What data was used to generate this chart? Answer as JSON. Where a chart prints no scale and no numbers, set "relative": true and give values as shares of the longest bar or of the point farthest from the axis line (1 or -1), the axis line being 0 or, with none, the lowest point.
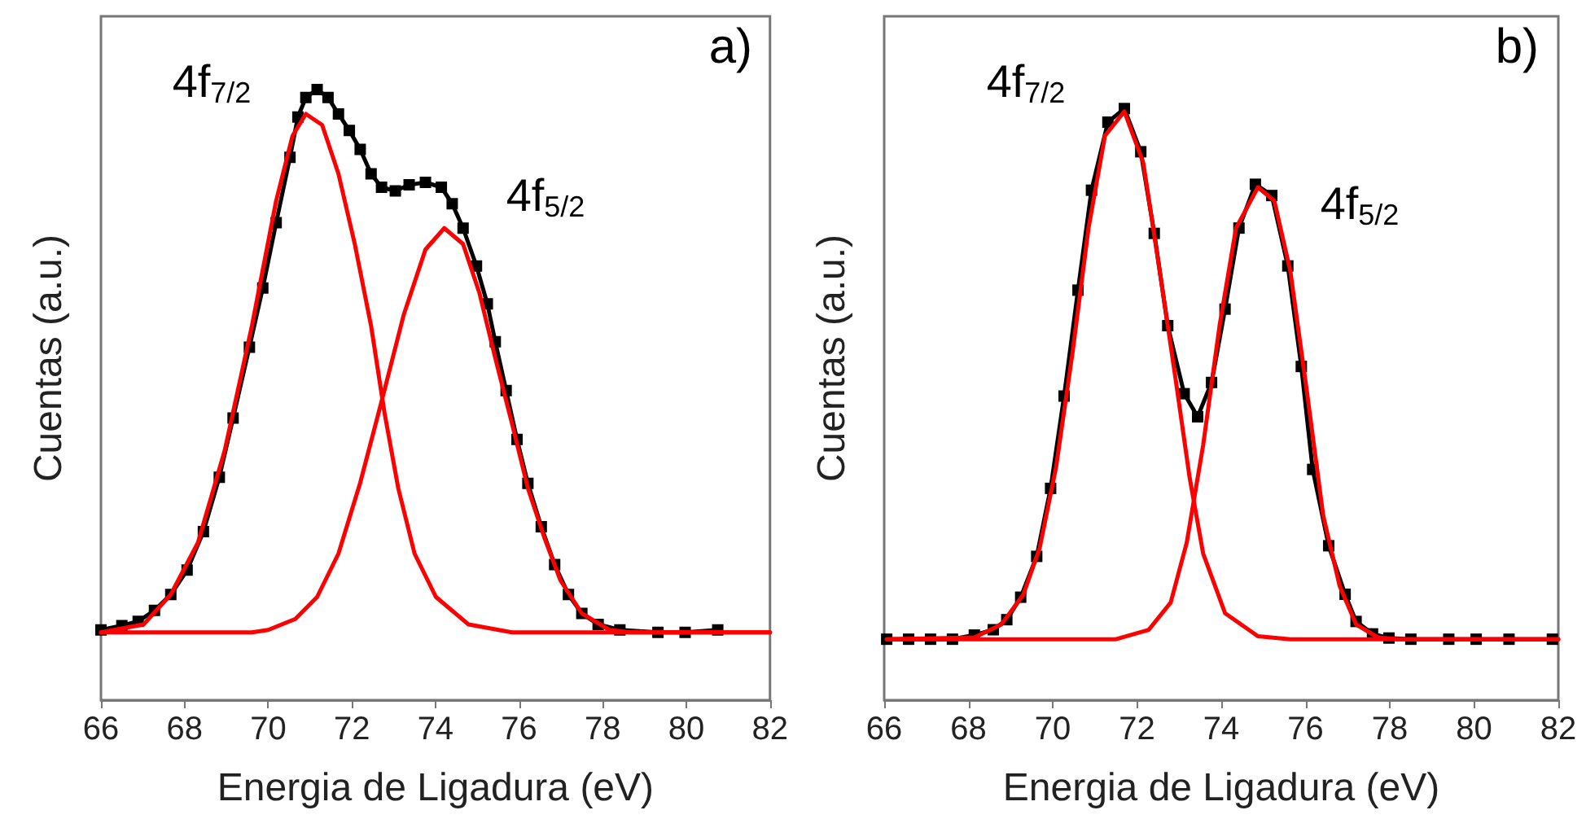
{
  "chart_data": [
    {
      "type": "line",
      "xlabel": "Energia de Ligadura (eV)",
      "ylabel": "Cuentas (a.u.)",
      "relative": true,
      "xlim": [
        66,
        82
      ],
      "xticks": [
        66,
        68,
        70,
        72,
        74,
        76,
        78,
        80,
        82
      ],
      "grid": false,
      "annotations": [
        "a)",
        "4f$_{7/2}$",
        "4f$_{5/2}$"
      ],
      "series": [
        {
          "color": "#000000",
          "marker": "square",
          "x": [
            66.0,
            66.5,
            66.89,
            67.28,
            67.67,
            68.06,
            68.45,
            68.83,
            69.16,
            69.55,
            69.87,
            70.19,
            70.52,
            70.71,
            70.9,
            71.17,
            71.43,
            71.68,
            71.94,
            72.2,
            72.46,
            72.71,
            73.04,
            73.37,
            73.76,
            74.14,
            74.4,
            74.66,
            74.98,
            75.24,
            75.43,
            75.69,
            75.95,
            76.21,
            76.53,
            76.85,
            77.18,
            77.5,
            77.89,
            78.41,
            79.32,
            79.97,
            80.75
          ],
          "values": [
            0.115,
            0.122,
            0.129,
            0.147,
            0.173,
            0.213,
            0.276,
            0.365,
            0.462,
            0.578,
            0.675,
            0.782,
            0.889,
            0.955,
            0.987,
            1.0,
            0.987,
            0.96,
            0.933,
            0.902,
            0.862,
            0.84,
            0.834,
            0.844,
            0.848,
            0.84,
            0.813,
            0.773,
            0.711,
            0.649,
            0.587,
            0.507,
            0.427,
            0.355,
            0.284,
            0.222,
            0.173,
            0.142,
            0.124,
            0.115,
            0.111,
            0.111,
            0.115
          ]
        },
        {
          "color": "#ff0000",
          "marker": "none",
          "x": [
            66.0,
            67.02,
            67.67,
            68.32,
            68.96,
            69.61,
            70.19,
            70.58,
            70.9,
            71.29,
            71.68,
            72.07,
            72.46,
            72.78,
            73.11,
            73.5,
            74.01,
            74.79,
            75.83,
            82
          ],
          "values": [
            0.111,
            0.124,
            0.173,
            0.258,
            0.409,
            0.613,
            0.818,
            0.924,
            0.96,
            0.942,
            0.862,
            0.747,
            0.613,
            0.471,
            0.347,
            0.24,
            0.169,
            0.124,
            0.111,
            0.111
          ]
        },
        {
          "color": "#ff0000",
          "marker": "none",
          "x": [
            66.0,
            69.61,
            70.0,
            70.65,
            71.17,
            71.68,
            72.2,
            72.71,
            73.24,
            73.76,
            74.21,
            74.66,
            75.05,
            75.43,
            75.83,
            76.21,
            76.6,
            76.99,
            77.5,
            78.16,
            78.67,
            82
          ],
          "values": [
            0.111,
            0.111,
            0.115,
            0.133,
            0.169,
            0.24,
            0.356,
            0.489,
            0.631,
            0.738,
            0.773,
            0.747,
            0.667,
            0.56,
            0.453,
            0.347,
            0.267,
            0.196,
            0.142,
            0.115,
            0.111,
            0.111
          ]
        }
      ]
    },
    {
      "type": "line",
      "xlabel": "Energia de Ligadura (eV)",
      "ylabel": "Cuentas (a.u.)",
      "relative": true,
      "xlim": [
        66,
        82
      ],
      "xticks": [
        66,
        68,
        70,
        72,
        74,
        76,
        78,
        80,
        82
      ],
      "grid": false,
      "annotations": [
        "b)",
        "4f$_{7/2}$",
        "4f$_{5/2}$"
      ],
      "series": [
        {
          "color": "#000000",
          "marker": "square",
          "x": [
            66.06,
            66.58,
            67.1,
            67.62,
            68.14,
            68.59,
            68.91,
            69.24,
            69.62,
            69.95,
            70.27,
            70.6,
            70.92,
            71.31,
            71.7,
            72.09,
            72.41,
            72.73,
            73.12,
            73.44,
            73.77,
            74.09,
            74.42,
            74.81,
            75.2,
            75.58,
            75.9,
            76.17,
            76.55,
            76.94,
            77.2,
            77.59,
            77.98,
            78.5,
            79.4,
            80.05,
            80.83,
            81.86
          ],
          "values": [
            0.103,
            0.103,
            0.103,
            0.103,
            0.11,
            0.119,
            0.136,
            0.174,
            0.243,
            0.358,
            0.514,
            0.693,
            0.862,
            0.977,
            1.0,
            0.927,
            0.789,
            0.633,
            0.518,
            0.479,
            0.537,
            0.661,
            0.798,
            0.872,
            0.853,
            0.734,
            0.564,
            0.39,
            0.261,
            0.179,
            0.133,
            0.112,
            0.105,
            0.103,
            0.103,
            0.103,
            0.103,
            0.103
          ]
        },
        {
          "color": "#ff0000",
          "marker": "none",
          "x": [
            66.06,
            68.14,
            68.78,
            69.3,
            69.69,
            70.08,
            70.47,
            70.85,
            71.24,
            71.7,
            72.15,
            72.54,
            72.92,
            73.25,
            73.57,
            74.09,
            74.87,
            75.64,
            82
          ],
          "values": [
            0.103,
            0.106,
            0.128,
            0.178,
            0.257,
            0.394,
            0.587,
            0.798,
            0.954,
            0.995,
            0.908,
            0.725,
            0.541,
            0.376,
            0.248,
            0.147,
            0.108,
            0.103,
            0.103
          ]
        },
        {
          "color": "#ff0000",
          "marker": "none",
          "x": [
            66.06,
            71.5,
            72.28,
            72.8,
            73.18,
            73.57,
            73.96,
            74.35,
            74.87,
            75.26,
            75.64,
            76.03,
            76.42,
            76.81,
            77.2,
            77.72,
            78.23,
            82
          ],
          "values": [
            0.103,
            0.103,
            0.119,
            0.165,
            0.266,
            0.431,
            0.633,
            0.798,
            0.867,
            0.844,
            0.725,
            0.523,
            0.312,
            0.193,
            0.128,
            0.106,
            0.103,
            0.103
          ]
        }
      ]
    }
  ]
}
